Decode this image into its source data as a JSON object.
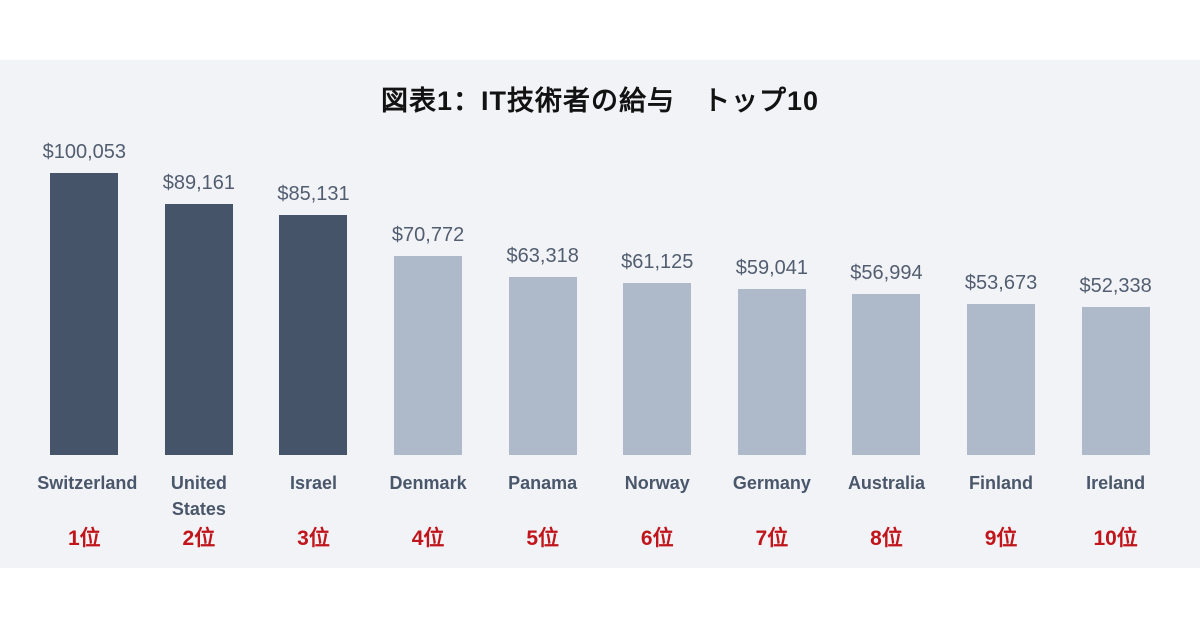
{
  "chart_data": {
    "type": "bar",
    "title": "図表1：IT技術者の給与　トップ10",
    "categories": [
      "Switzerland",
      "United States",
      "Israel",
      "Denmark",
      "Panama",
      "Norway",
      "Germany",
      "Australia",
      "Finland",
      "Ireland"
    ],
    "values": [
      100053,
      89161,
      85131,
      70772,
      63318,
      61125,
      59041,
      56994,
      53673,
      52338
    ],
    "value_labels": [
      "$100,053",
      "$89,161",
      "$85,131",
      "$70,772",
      "$63,318",
      "$61,125",
      "$59,041",
      "$56,994",
      "$53,673",
      "$52,338"
    ],
    "ranks": [
      "1位",
      "2位",
      "3位",
      "4位",
      "5位",
      "6位",
      "7位",
      "8位",
      "9位",
      "10位"
    ],
    "emphasized": [
      true,
      true,
      true,
      false,
      false,
      false,
      false,
      false,
      false,
      false
    ],
    "ylim": [
      0,
      100053
    ],
    "xlabel": "",
    "ylabel": "",
    "grid": false,
    "legend": "none"
  },
  "colors": {
    "bar_dark": "#46546a",
    "bar_light": "#aeb9ca",
    "rank_red": "#c0151a",
    "panel_bg": "#f2f3f7",
    "value_text": "#525e70",
    "country_text": "#4a576b",
    "title_text": "#121212"
  }
}
